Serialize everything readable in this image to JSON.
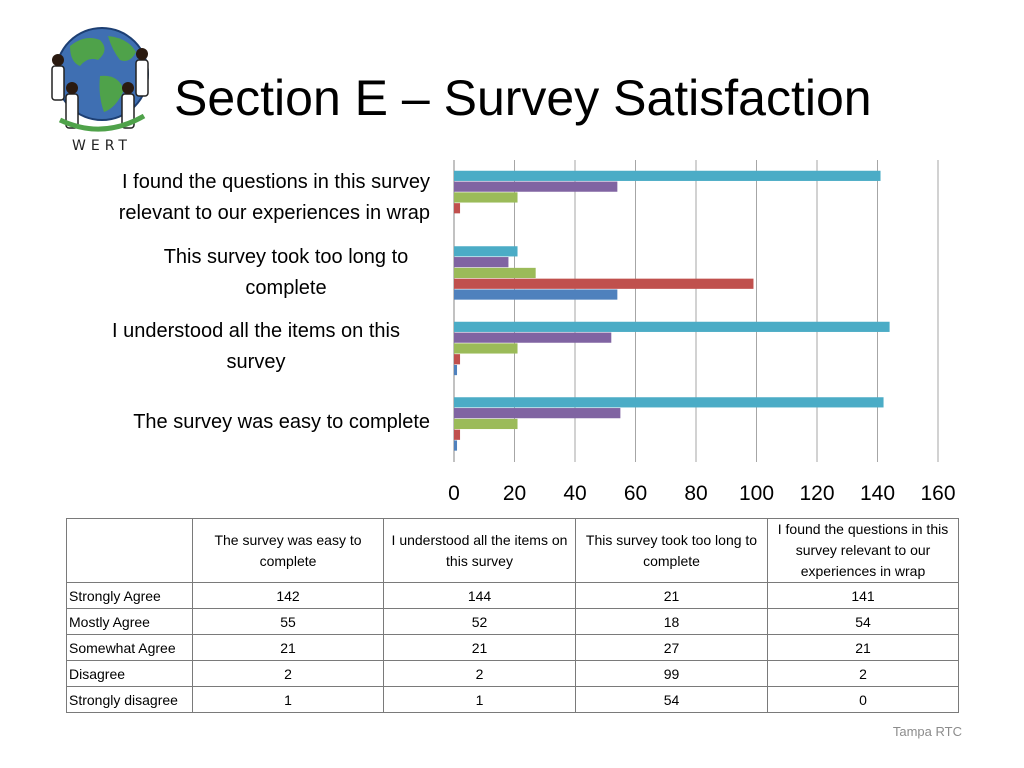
{
  "slide": {
    "title": "Section E – Survey Satisfaction",
    "logo_text": "WERT",
    "footer": "Tampa RTC"
  },
  "chart_data": {
    "type": "bar",
    "orientation": "horizontal",
    "categories": [
      "The survey was easy to complete",
      "I understood all the items on this survey",
      "This survey took too long to complete",
      "I found the questions in this survey relevant to our experiences in wrap"
    ],
    "series": [
      {
        "name": "Strongly disagree",
        "color": "#4f81bd",
        "values": [
          1,
          1,
          54,
          0
        ]
      },
      {
        "name": "Disagree",
        "color": "#c0504d",
        "values": [
          2,
          2,
          99,
          2
        ]
      },
      {
        "name": "Somewhat Agree",
        "color": "#9bbb59",
        "values": [
          21,
          21,
          27,
          21
        ]
      },
      {
        "name": "Mostly Agree",
        "color": "#8064a2",
        "values": [
          55,
          52,
          18,
          54
        ]
      },
      {
        "name": "Strongly Agree",
        "color": "#4bacc6",
        "values": [
          142,
          144,
          21,
          141
        ]
      }
    ],
    "xlim": [
      0,
      160
    ],
    "xticks": [
      "0",
      "20",
      "40",
      "60",
      "80",
      "100",
      "120",
      "140",
      "160"
    ],
    "grid": true,
    "legend": "none"
  },
  "chart_labels": {
    "cat0_l1": "The survey was easy to complete",
    "cat1_l1": "I understood all the items on this",
    "cat1_l2": "survey",
    "cat2_l1": "This survey took too long to",
    "cat2_l2": "complete",
    "cat3_l1": "I found the questions in this survey",
    "cat3_l2": "relevant to our experiences in wrap"
  },
  "table": {
    "corner": "",
    "headers": [
      "The survey was easy to complete",
      "I understood all the items on this survey",
      "This survey took too long to complete",
      "I found the questions in this survey relevant to our experiences in wrap"
    ],
    "rows": [
      {
        "label": "Strongly Agree",
        "values": [
          "142",
          "144",
          "21",
          "141"
        ]
      },
      {
        "label": "Mostly Agree",
        "values": [
          "55",
          "52",
          "18",
          "54"
        ]
      },
      {
        "label": "Somewhat Agree",
        "values": [
          "21",
          "21",
          "27",
          "21"
        ]
      },
      {
        "label": "Disagree",
        "values": [
          "2",
          "2",
          "99",
          "2"
        ]
      },
      {
        "label": "Strongly disagree",
        "values": [
          "1",
          "1",
          "54",
          "0"
        ]
      }
    ]
  }
}
